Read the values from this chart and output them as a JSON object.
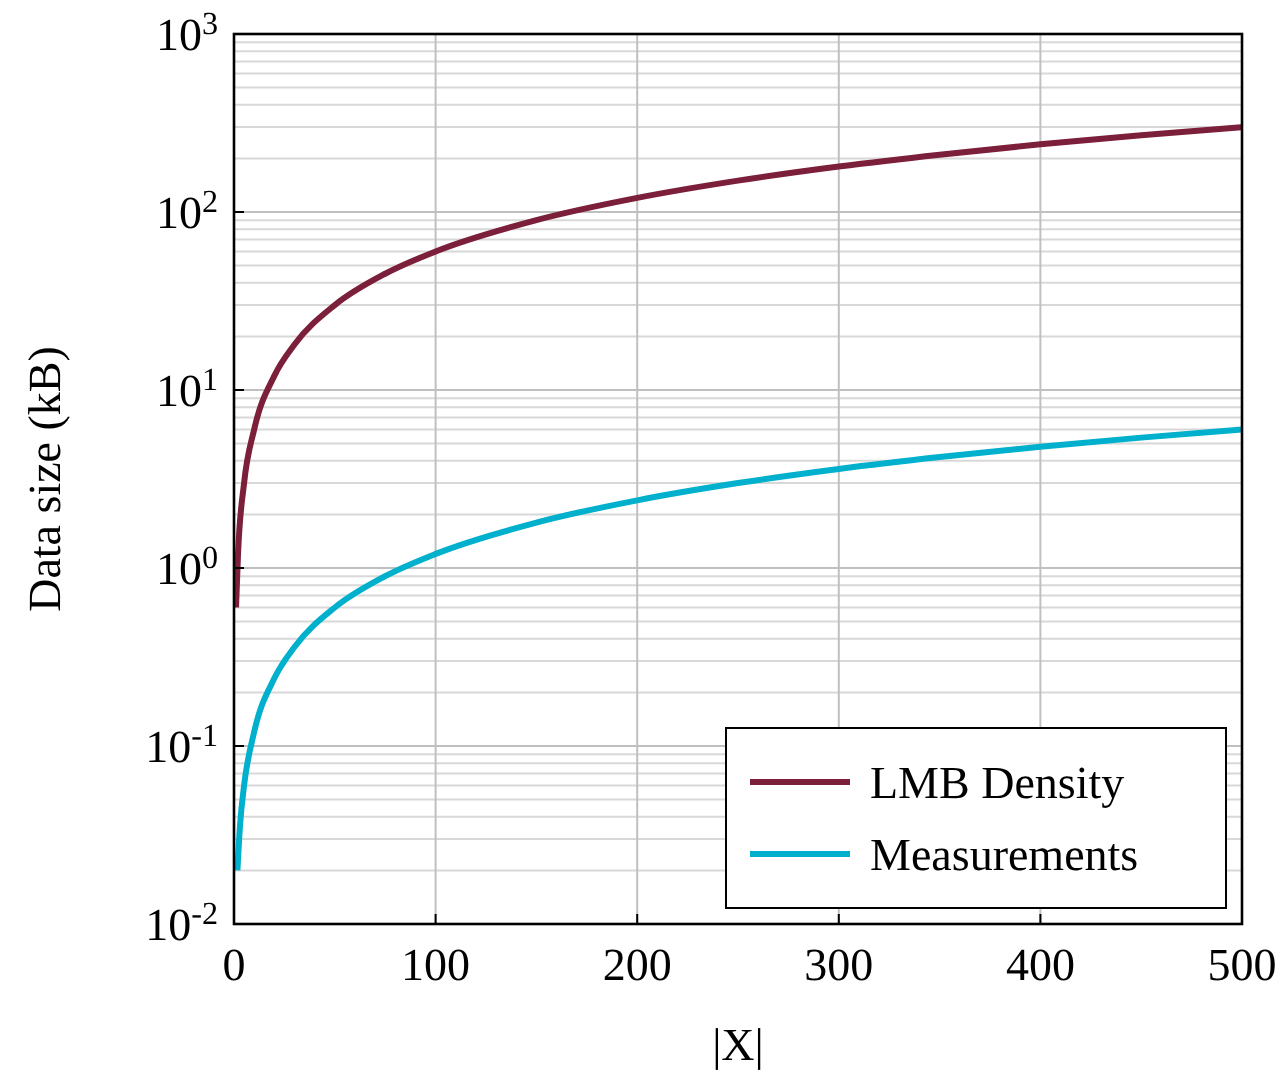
{
  "chart_data": {
    "type": "line",
    "xlabel": "|X|",
    "ylabel": "Data size (kB)",
    "log": "y",
    "grid": true,
    "legend": "bottom right",
    "line_style": "solid",
    "xlim": [
      0,
      500
    ],
    "xticks": [
      0,
      100,
      200,
      300,
      400,
      500
    ],
    "ylim": [
      0.01,
      1000
    ],
    "yticks": [
      {
        "value": 0.01,
        "label": "10$^{-2}$"
      },
      {
        "value": 0.1,
        "label": "10$^{-1}$"
      },
      {
        "value": 1,
        "label": "10$^{0}$"
      },
      {
        "value": 10,
        "label": "10$^{1}$"
      },
      {
        "value": 100,
        "label": "10$^{2}$"
      },
      {
        "value": 1000,
        "label": "10$^{3}$"
      }
    ],
    "series": [
      {
        "name": "LMB Density",
        "color": "#7b1f3a",
        "x": [
          1,
          2,
          5,
          10,
          20,
          30,
          50,
          75,
          100,
          150,
          200,
          250,
          300,
          350,
          400,
          450,
          500
        ],
        "values": [
          0.6,
          1.2,
          3,
          6,
          12,
          18,
          30,
          45,
          60,
          90,
          120,
          150,
          180,
          210,
          240,
          270,
          300
        ]
      },
      {
        "name": "Measurements",
        "color": "#00b0cc",
        "x": [
          1.7,
          3,
          5,
          10,
          20,
          30,
          50,
          75,
          100,
          150,
          200,
          250,
          300,
          350,
          400,
          450,
          500
        ],
        "values": [
          0.02,
          0.036,
          0.06,
          0.12,
          0.24,
          0.36,
          0.6,
          0.9,
          1.2,
          1.8,
          2.4,
          3,
          3.6,
          4.2,
          4.8,
          5.4,
          6
        ]
      }
    ]
  }
}
